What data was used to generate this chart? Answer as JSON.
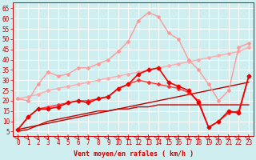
{
  "title": "",
  "xlabel": "Vent moyen/en rafales ( km/h )",
  "background_color": "#ceeef0",
  "grid_color": "#ffffff",
  "x": [
    0,
    1,
    2,
    3,
    4,
    5,
    6,
    7,
    8,
    9,
    10,
    11,
    12,
    13,
    14,
    15,
    16,
    17,
    18,
    19,
    20,
    21,
    22,
    23
  ],
  "series": [
    {
      "name": "light_pink_upper_rafales",
      "y": [
        21,
        20,
        28,
        34,
        32,
        33,
        36,
        36,
        38,
        40,
        44,
        49,
        59,
        63,
        61,
        53,
        50,
        40,
        35,
        28,
        20,
        25,
        46,
        48
      ],
      "color": "#ff9999",
      "lw": 1.0,
      "marker": "D",
      "ms": 2.0,
      "zorder": 3
    },
    {
      "name": "light_pink_linear",
      "y": [
        21,
        22,
        23,
        25,
        26,
        27,
        28,
        29,
        30,
        31,
        32,
        33,
        34,
        35,
        36,
        37,
        38,
        39,
        40,
        41,
        42,
        43,
        44,
        46
      ],
      "color": "#ffaaaa",
      "lw": 1.0,
      "marker": "D",
      "ms": 2.0,
      "zorder": 2
    },
    {
      "name": "red_main_with_markers",
      "y": [
        6,
        12,
        16,
        16,
        17,
        19,
        20,
        19,
        21,
        22,
        26,
        28,
        33,
        35,
        36,
        29,
        27,
        25,
        19,
        7,
        10,
        15,
        14,
        32
      ],
      "color": "#ee0000",
      "lw": 1.2,
      "marker": "D",
      "ms": 2.5,
      "zorder": 5
    },
    {
      "name": "dark_red_linear1",
      "y": [
        5,
        6,
        8,
        10,
        11,
        12,
        13,
        14,
        15,
        15,
        16,
        16,
        17,
        17,
        18,
        18,
        18,
        18,
        18,
        18,
        18,
        18,
        18,
        18
      ],
      "color": "#cc0000",
      "lw": 1.0,
      "marker": null,
      "ms": 0,
      "zorder": 2
    },
    {
      "name": "dark_red_linear2",
      "y": [
        6,
        7,
        8,
        9,
        10,
        11,
        12,
        13,
        14,
        15,
        16,
        17,
        18,
        19,
        20,
        21,
        22,
        23,
        24,
        25,
        26,
        27,
        28,
        29
      ],
      "color": "#bb0000",
      "lw": 1.0,
      "marker": null,
      "ms": 0,
      "zorder": 2
    },
    {
      "name": "red_secondary_markers",
      "y": [
        6,
        12,
        16,
        17,
        18,
        19,
        20,
        20,
        21,
        22,
        26,
        28,
        30,
        29,
        28,
        27,
        26,
        24,
        20,
        7,
        10,
        14,
        15,
        32
      ],
      "color": "#ff3333",
      "lw": 1.0,
      "marker": "D",
      "ms": 2.0,
      "zorder": 4
    }
  ],
  "ylim": [
    3,
    68
  ],
  "yticks": [
    5,
    10,
    15,
    20,
    25,
    30,
    35,
    40,
    45,
    50,
    55,
    60,
    65
  ],
  "xlim": [
    -0.5,
    23.5
  ],
  "fontsize_label": 6,
  "fontsize_tick": 5.5
}
